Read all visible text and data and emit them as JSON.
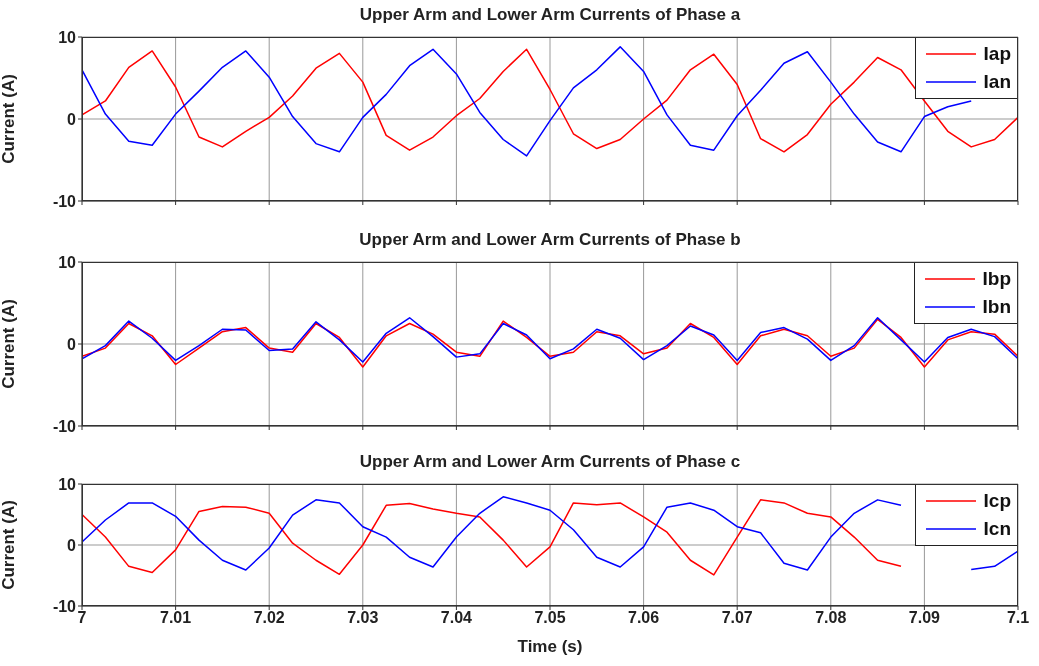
{
  "chart_data": [
    {
      "type": "line",
      "title": "Upper Arm and Lower Arm Currents of Phase a",
      "ylabel": "Current (A)",
      "x": [
        7,
        7.0025,
        7.005,
        7.0075,
        7.01,
        7.0125,
        7.015,
        7.0175,
        7.02,
        7.0225,
        7.025,
        7.0275,
        7.03,
        7.0325,
        7.035,
        7.0375,
        7.04,
        7.0425,
        7.045,
        7.0475,
        7.05,
        7.0525,
        7.055,
        7.0575,
        7.06,
        7.0625,
        7.065,
        7.0675,
        7.07,
        7.0725,
        7.075,
        7.0775,
        7.08,
        7.0825,
        7.085,
        7.0875,
        7.09,
        7.0925,
        7.095,
        7.0975,
        7.1
      ],
      "series": [
        {
          "name": "Iap",
          "color": "#ff0000",
          "values": [
            0.5,
            2.2,
            6.3,
            8.3,
            3.9,
            -2.2,
            -3.4,
            -1.5,
            0.2,
            2.8,
            6.2,
            8.0,
            4.5,
            -2.0,
            -3.8,
            -2.2,
            0.4,
            2.5,
            5.8,
            8.5,
            3.6,
            -1.8,
            -3.6,
            -2.5,
            0.0,
            2.3,
            6.0,
            7.9,
            4.2,
            -2.4,
            -4.0,
            -1.9,
            1.8,
            4.5,
            7.5,
            6.0,
            2.2,
            -1.5,
            -3.4,
            -2.5,
            0.2
          ]
        },
        {
          "name": "Ian",
          "color": "#0000ff",
          "values": [
            6.0,
            0.6,
            -2.7,
            -3.2,
            0.6,
            3.4,
            6.3,
            8.3,
            5.1,
            0.3,
            -3.0,
            -4.0,
            0.2,
            3.0,
            6.5,
            8.5,
            5.5,
            0.8,
            -2.5,
            -4.5,
            -0.2,
            3.8,
            6.0,
            8.8,
            5.8,
            0.5,
            -3.2,
            -3.8,
            0.4,
            3.5,
            6.8,
            8.2,
            4.5,
            0.6,
            -2.8,
            -4.0,
            0.3,
            1.5,
            2.2,
            null,
            null
          ]
        }
      ],
      "xlim": [
        7,
        7.1
      ],
      "ylim": [
        -10,
        10
      ],
      "xticks": [
        7,
        7.01,
        7.02,
        7.03,
        7.04,
        7.05,
        7.06,
        7.07,
        7.08,
        7.09,
        7.1
      ],
      "yticks": [
        -10,
        0,
        10
      ],
      "grid": true,
      "legend": "top right",
      "tick_labels": "y"
    },
    {
      "type": "line",
      "title": "Upper Arm and Lower Arm Currents of Phase b",
      "ylabel": "Current (A)",
      "x": [
        7,
        7.0025,
        7.005,
        7.0075,
        7.01,
        7.0125,
        7.015,
        7.0175,
        7.02,
        7.0225,
        7.025,
        7.0275,
        7.03,
        7.0325,
        7.035,
        7.0375,
        7.04,
        7.0425,
        7.045,
        7.0475,
        7.05,
        7.0525,
        7.055,
        7.0575,
        7.06,
        7.0625,
        7.065,
        7.0675,
        7.07,
        7.0725,
        7.075,
        7.0775,
        7.08,
        7.0825,
        7.085,
        7.0875,
        7.09,
        7.0925,
        7.095,
        7.0975,
        7.1
      ],
      "series": [
        {
          "name": "Ibp",
          "color": "#ff0000",
          "values": [
            -1.5,
            -0.5,
            2.5,
            1.0,
            -2.5,
            -0.5,
            1.5,
            2.0,
            -0.5,
            -1.0,
            2.5,
            0.8,
            -2.8,
            1.0,
            2.5,
            1.2,
            -1.0,
            -1.5,
            2.8,
            0.8,
            -1.5,
            -1.0,
            1.5,
            1.0,
            -1.2,
            -0.5,
            2.5,
            0.8,
            -2.5,
            1.0,
            1.8,
            1.0,
            -1.5,
            -0.5,
            3.0,
            0.8,
            -2.8,
            0.5,
            1.5,
            1.2,
            -1.5
          ]
        },
        {
          "name": "Ibn",
          "color": "#0000ff",
          "values": [
            -1.8,
            -0.2,
            2.8,
            0.7,
            -2.0,
            -0.2,
            1.8,
            1.7,
            -0.8,
            -0.6,
            2.7,
            0.5,
            -2.2,
            1.3,
            3.2,
            0.9,
            -1.6,
            -1.2,
            2.5,
            1.1,
            -1.8,
            -0.6,
            1.8,
            0.7,
            -1.9,
            -0.2,
            2.2,
            1.1,
            -2.0,
            1.4,
            2.0,
            0.6,
            -2.0,
            -0.2,
            3.2,
            0.5,
            -2.2,
            0.8,
            1.8,
            0.9,
            -1.8
          ]
        }
      ],
      "xlim": [
        7,
        7.1
      ],
      "ylim": [
        -10,
        10
      ],
      "xticks": [
        7,
        7.01,
        7.02,
        7.03,
        7.04,
        7.05,
        7.06,
        7.07,
        7.08,
        7.09,
        7.1
      ],
      "yticks": [
        -10,
        0,
        10
      ],
      "grid": true,
      "legend": "top right",
      "tick_labels": "y"
    },
    {
      "type": "line",
      "title": "Upper Arm and Lower Arm Currents of Phase c",
      "ylabel": "Current (A)",
      "xlabel": "Time (s)",
      "x": [
        7,
        7.0025,
        7.005,
        7.0075,
        7.01,
        7.0125,
        7.015,
        7.0175,
        7.02,
        7.0225,
        7.025,
        7.0275,
        7.03,
        7.0325,
        7.035,
        7.0375,
        7.04,
        7.0425,
        7.045,
        7.0475,
        7.05,
        7.0525,
        7.055,
        7.0575,
        7.06,
        7.0625,
        7.065,
        7.0675,
        7.07,
        7.0725,
        7.075,
        7.0775,
        7.08,
        7.0825,
        7.085,
        7.0875,
        7.09,
        7.0925,
        7.095,
        7.0975,
        7.1
      ],
      "series": [
        {
          "name": "Icp",
          "color": "#ff0000",
          "values": [
            5.0,
            1.3,
            -3.5,
            -4.5,
            -0.8,
            5.5,
            6.3,
            6.2,
            5.2,
            0.3,
            -2.5,
            -4.8,
            0.0,
            6.5,
            6.8,
            5.9,
            5.2,
            4.6,
            0.8,
            -3.6,
            -0.3,
            6.9,
            6.6,
            6.9,
            4.6,
            2.1,
            -2.5,
            -4.9,
            1.3,
            7.4,
            6.9,
            5.2,
            4.6,
            1.3,
            -2.5,
            -3.5,
            null,
            null,
            null,
            null,
            null
          ]
        },
        {
          "name": "Icn",
          "color": "#0000ff",
          "values": [
            0.5,
            4.1,
            6.9,
            6.9,
            4.7,
            0.8,
            -2.5,
            -4.1,
            -0.5,
            4.9,
            7.4,
            6.9,
            3.0,
            1.3,
            -2.0,
            -3.6,
            1.3,
            5.2,
            7.9,
            6.9,
            5.7,
            2.5,
            -2.0,
            -3.6,
            -0.3,
            6.2,
            6.9,
            5.7,
            3.0,
            2.0,
            -3.0,
            -4.1,
            1.3,
            5.2,
            7.4,
            6.5,
            null,
            null,
            -4.0,
            -3.5,
            -1.0
          ]
        }
      ],
      "xlim": [
        7,
        7.1
      ],
      "ylim": [
        -10,
        10
      ],
      "xticks": [
        7,
        7.01,
        7.02,
        7.03,
        7.04,
        7.05,
        7.06,
        7.07,
        7.08,
        7.09,
        7.1
      ],
      "yticks": [
        -10,
        0,
        10
      ],
      "grid": true,
      "legend": "top right"
    }
  ]
}
